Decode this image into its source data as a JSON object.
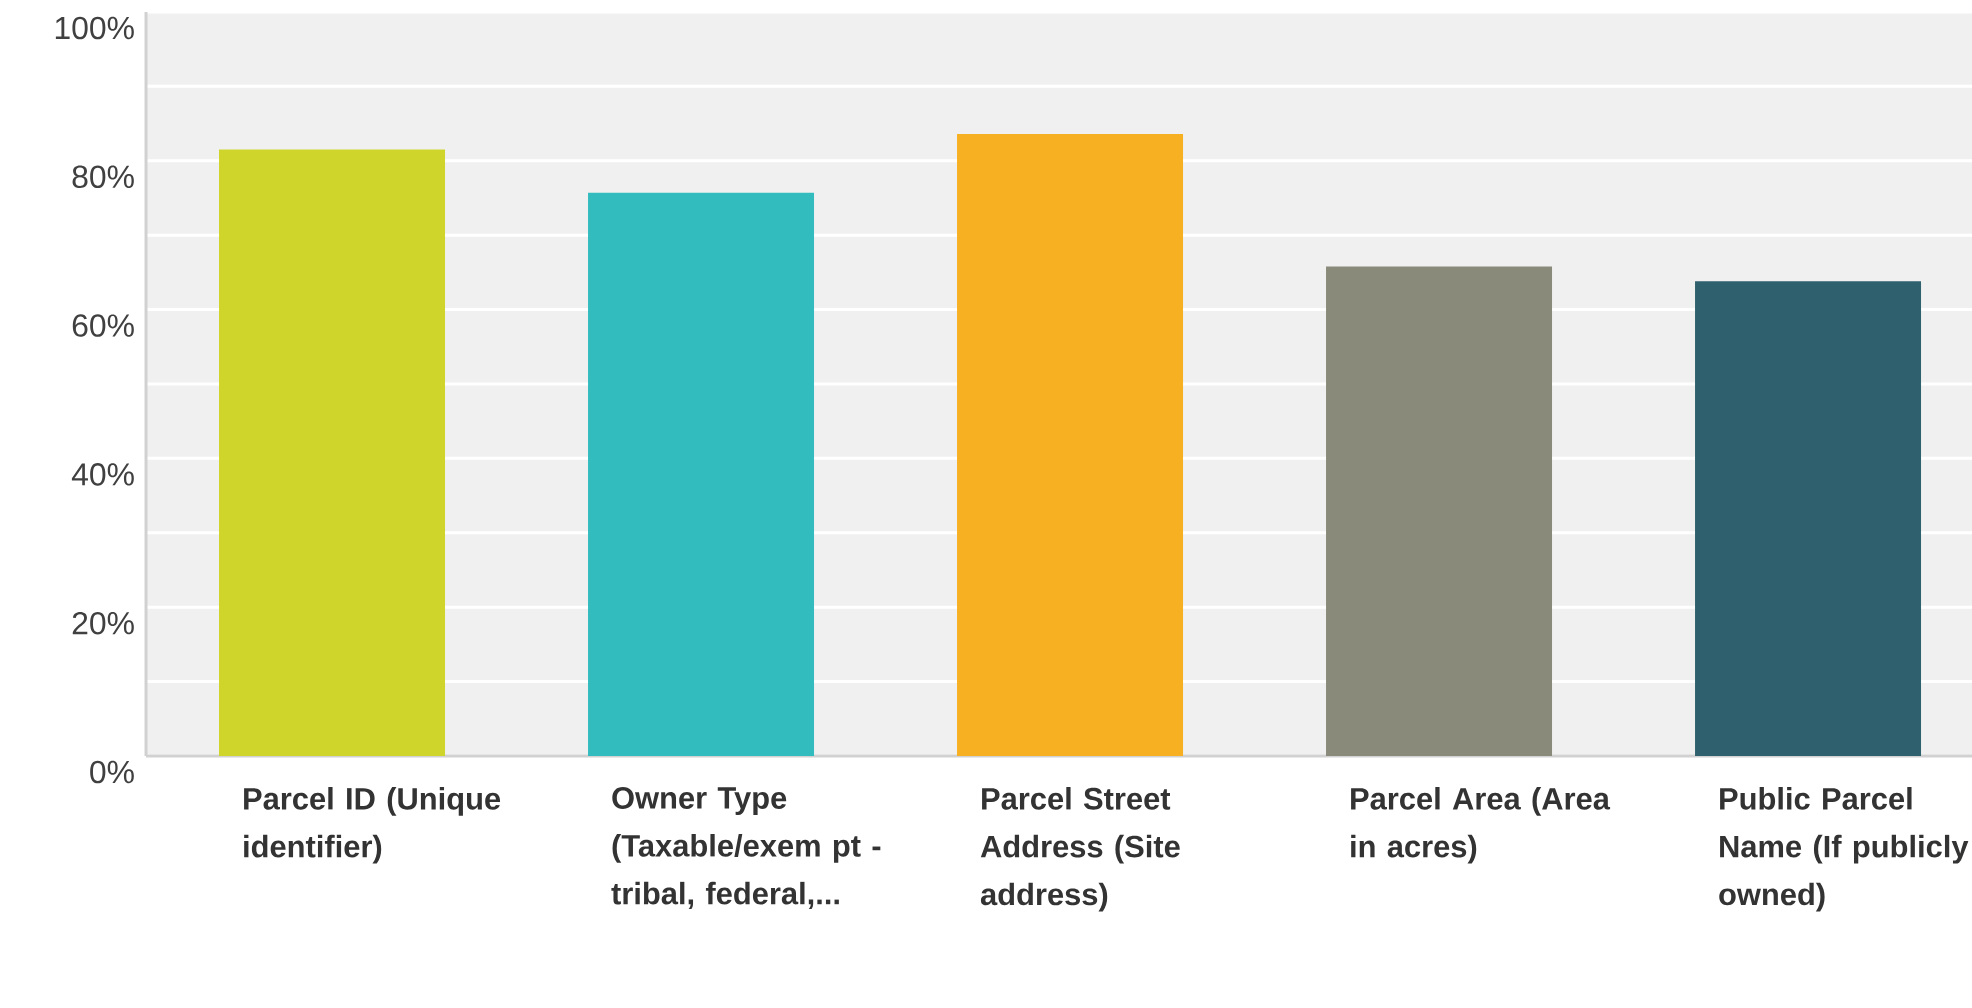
{
  "chart_data": {
    "type": "bar",
    "categories": [
      "Parcel ID (Unique identifier)",
      "Owner Type (Taxable/exem pt - tribal, federal,...",
      "Parcel Street Address (Site address)",
      "Parcel Area (Area in acres)",
      "Public Parcel Name (If publicly owned)"
    ],
    "values": [
      81.5,
      75.7,
      83.6,
      65.8,
      63.8
    ],
    "colors": [
      "#cfd52a",
      "#33bcbe",
      "#f6b021",
      "#898a7a",
      "#2f606d"
    ],
    "ylim": [
      0,
      100
    ],
    "yticks": [
      {
        "value": 0,
        "label": "0%"
      },
      {
        "value": 10,
        "label": null
      },
      {
        "value": 20,
        "label": "20%"
      },
      {
        "value": 30,
        "label": null
      },
      {
        "value": 40,
        "label": "40%"
      },
      {
        "value": 50,
        "label": null
      },
      {
        "value": 60,
        "label": "60%"
      },
      {
        "value": 70,
        "label": null
      },
      {
        "value": 80,
        "label": "80%"
      },
      {
        "value": 90,
        "label": null
      },
      {
        "value": 100,
        "label": "100%"
      }
    ],
    "grid": "y"
  }
}
